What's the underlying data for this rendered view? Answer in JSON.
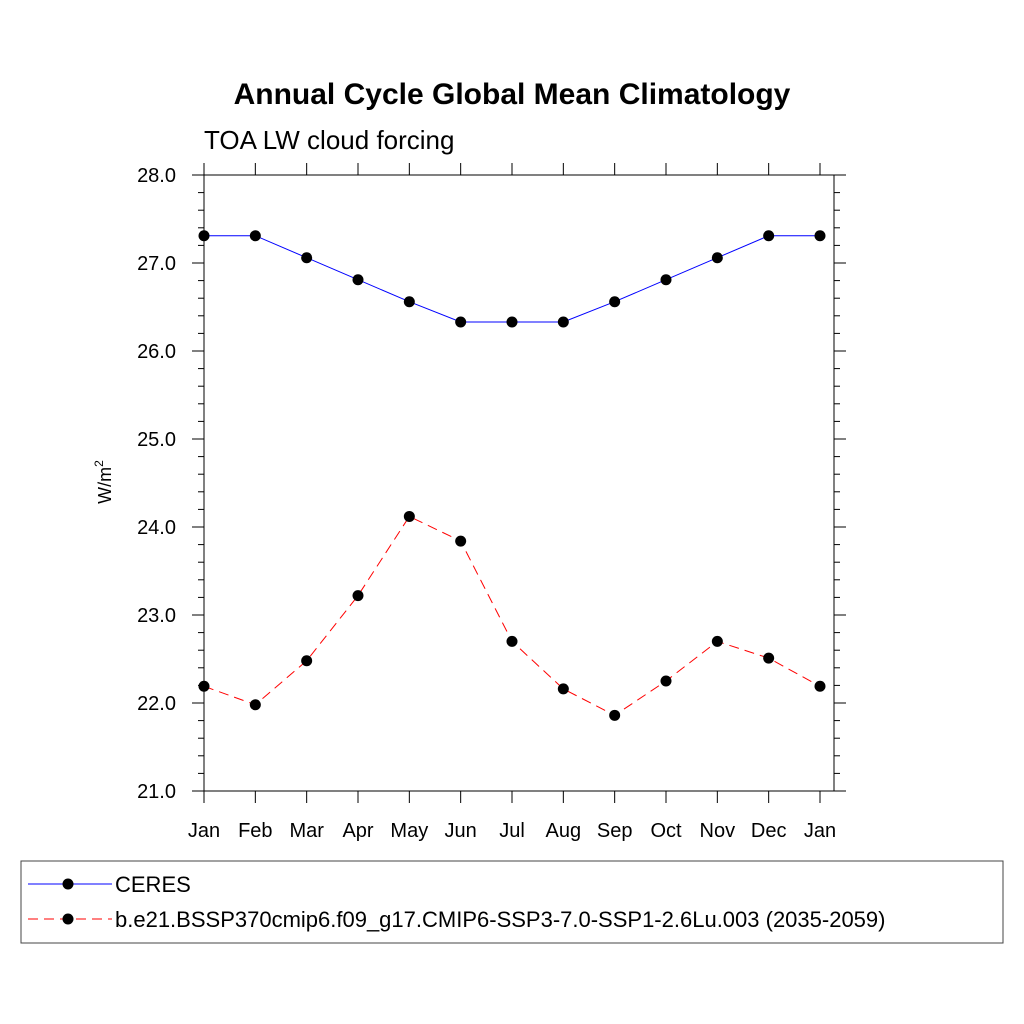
{
  "chart_data": {
    "type": "line",
    "title": "Annual Cycle Global Mean Climatology",
    "subtitle": "TOA LW cloud forcing",
    "ylabel": "W/m",
    "ylabel_superscript": "2",
    "xlabel": "",
    "categories": [
      "Jan",
      "Feb",
      "Mar",
      "Apr",
      "May",
      "Jun",
      "Jul",
      "Aug",
      "Sep",
      "Oct",
      "Nov",
      "Dec",
      "Jan"
    ],
    "ylim": [
      21.0,
      28.0
    ],
    "yticks": [
      "21.0",
      "22.0",
      "23.0",
      "24.0",
      "25.0",
      "26.0",
      "27.0",
      "28.0"
    ],
    "yminor_step": 0.2,
    "grid": false,
    "legend_position": "bottom",
    "series": [
      {
        "name": "CERES",
        "color": "#0000ff",
        "dash": "solid",
        "marker_color": "#000000",
        "values": [
          27.31,
          27.31,
          27.06,
          26.81,
          26.56,
          26.33,
          26.33,
          26.33,
          26.56,
          26.81,
          27.06,
          27.31,
          27.31
        ]
      },
      {
        "name": "b.e21.BSSP370cmip6.f09_g17.CMIP6-SSP3-7.0-SSP1-2.6Lu.003 (2035-2059)",
        "color": "#ff0000",
        "dash": "dashed",
        "marker_color": "#000000",
        "values": [
          22.19,
          21.98,
          22.48,
          23.22,
          24.12,
          23.84,
          22.7,
          22.16,
          21.86,
          22.25,
          22.7,
          22.51,
          22.19
        ]
      }
    ]
  }
}
